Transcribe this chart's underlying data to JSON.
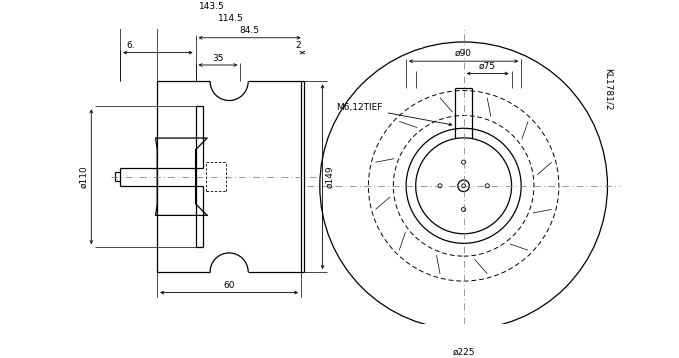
{
  "bg_color": "#ffffff",
  "line_color": "#000000",
  "centerline_color": "#888888",
  "dims_left": {
    "d110_label": "ø110",
    "d149_label": "ø149",
    "d60_label": "60",
    "d35_label": "35",
    "d6_label": "6.",
    "d2_label": "2",
    "d84_label": "84.5",
    "d114_label": "114.5",
    "d143_label": "143.5"
  },
  "dims_right": {
    "d225_label": "ø225",
    "d75_label": "ø75",
    "d90_label": "ø90",
    "m6_label": "M6,12TIEF"
  },
  "label": "KL1781/2",
  "font_size": 6.5,
  "lw": 0.9
}
